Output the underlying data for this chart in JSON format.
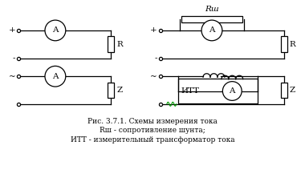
{
  "bg_color": "#ffffff",
  "line_color": "#000000",
  "title_line1": "Рис. 3.7.1. Схемы измерения тока",
  "title_line2": "Rш - сопротивление шунта;",
  "title_line3": "ИТТ - измерительный трансформатор тока",
  "R_sh_label": "Rш",
  "R_label": "R",
  "Z_label": "Z",
  "A_label": "A",
  "ITT_label": "ИТТ",
  "plus_label": "+",
  "minus_label": "-",
  "tilde_label": "~",
  "font_size": 6.5,
  "fig_width": 3.8,
  "fig_height": 2.27,
  "dpi": 100
}
